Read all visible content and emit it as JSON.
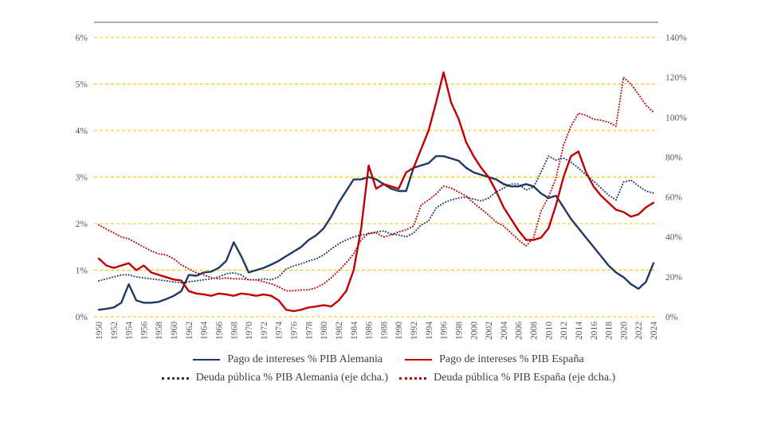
{
  "chart_data": {
    "type": "line",
    "title": "",
    "x": {
      "start": 1950,
      "end": 2024,
      "step": 1,
      "tick_step": 2
    },
    "left_axis": {
      "min": 0,
      "max": 6,
      "ticks": [
        "0%",
        "1%",
        "2%",
        "3%",
        "4%",
        "5%",
        "6%"
      ]
    },
    "right_axis": {
      "min": 0,
      "max": 140,
      "ticks": [
        "0%",
        "20%",
        "40%",
        "60%",
        "80%",
        "100%",
        "120%",
        "140%"
      ]
    },
    "grid": {
      "color": "#FFC000",
      "style": "dashed",
      "top_border_color": "#7f7f7f"
    },
    "text_color": "#595959",
    "legend_position": "bottom",
    "series": [
      {
        "id": "interest-germany",
        "name": "Pago de intereses % PIB Alemania",
        "axis": "left",
        "style": "solid",
        "color": "#1F3864",
        "values": [
          0.15,
          0.17,
          0.2,
          0.3,
          0.7,
          0.35,
          0.3,
          0.3,
          0.32,
          0.38,
          0.45,
          0.55,
          0.9,
          0.88,
          0.95,
          0.97,
          1.05,
          1.2,
          1.6,
          1.3,
          0.95,
          1.0,
          1.05,
          1.12,
          1.2,
          1.3,
          1.4,
          1.5,
          1.65,
          1.75,
          1.9,
          2.15,
          2.45,
          2.7,
          2.95,
          2.95,
          3.0,
          2.95,
          2.85,
          2.75,
          2.7,
          2.7,
          3.2,
          3.25,
          3.3,
          3.45,
          3.45,
          3.4,
          3.35,
          3.2,
          3.1,
          3.05,
          3.0,
          2.95,
          2.85,
          2.8,
          2.8,
          2.85,
          2.8,
          2.65,
          2.55,
          2.6,
          2.35,
          2.1,
          1.9,
          1.7,
          1.5,
          1.3,
          1.1,
          0.95,
          0.85,
          0.7,
          0.6,
          0.75,
          1.15
        ]
      },
      {
        "id": "interest-spain",
        "name": "Pago de intereses % PIB España",
        "axis": "left",
        "style": "solid",
        "color": "#C00000",
        "values": [
          1.25,
          1.1,
          1.05,
          1.1,
          1.15,
          1.0,
          1.1,
          0.95,
          0.9,
          0.85,
          0.8,
          0.78,
          0.55,
          0.5,
          0.48,
          0.45,
          0.5,
          0.48,
          0.45,
          0.5,
          0.48,
          0.45,
          0.48,
          0.45,
          0.35,
          0.15,
          0.12,
          0.15,
          0.2,
          0.22,
          0.25,
          0.22,
          0.35,
          0.55,
          1.0,
          1.9,
          3.25,
          2.75,
          2.85,
          2.8,
          2.75,
          3.1,
          3.2,
          3.6,
          4.0,
          4.6,
          5.25,
          4.6,
          4.25,
          3.75,
          3.45,
          3.2,
          3.0,
          2.7,
          2.35,
          2.1,
          1.85,
          1.65,
          1.65,
          1.7,
          1.9,
          2.4,
          3.0,
          3.45,
          3.55,
          3.1,
          2.8,
          2.6,
          2.45,
          2.3,
          2.25,
          2.15,
          2.2,
          2.35,
          2.45
        ]
      },
      {
        "id": "debt-germany",
        "name": "Deuda pública % PIB Alemania (eje dcha.)",
        "axis": "right",
        "style": "dotted",
        "color": "#1F3864",
        "values": [
          18,
          19,
          20,
          21,
          21,
          20,
          19.5,
          19,
          18.5,
          18,
          17.5,
          17,
          17.5,
          18,
          18.5,
          19,
          20,
          21.5,
          22,
          21,
          18.5,
          18.5,
          19,
          18.5,
          20,
          24,
          25.5,
          26.5,
          28,
          29,
          31,
          34,
          36.5,
          38.5,
          40,
          41,
          41.5,
          42.5,
          43,
          41.5,
          41,
          40,
          42,
          46,
          48,
          54.5,
          57,
          58.5,
          59.5,
          60,
          59,
          58,
          59.5,
          62.5,
          64.5,
          66.5,
          66.5,
          63.5,
          65,
          72.5,
          80.5,
          78.5,
          79.5,
          77.5,
          74.5,
          71,
          68,
          64.5,
          61,
          58.5,
          67.5,
          68.5,
          65.5,
          63,
          62
        ]
      },
      {
        "id": "debt-spain",
        "name": "Deuda pública % PIB España (eje dcha.)",
        "axis": "right",
        "style": "dotted",
        "color": "#C00000",
        "values": [
          46,
          44,
          42,
          40,
          39,
          37,
          35,
          33,
          31.5,
          31,
          29,
          26,
          24,
          22,
          21,
          19.5,
          19,
          19.5,
          19,
          19,
          18.5,
          18.5,
          17.5,
          16.5,
          15,
          13,
          13,
          13.5,
          13.5,
          14.5,
          16.5,
          19.5,
          23,
          27,
          31.5,
          38.5,
          42,
          42,
          40,
          41,
          42.5,
          43.5,
          45.5,
          56,
          58.5,
          61.5,
          65.5,
          64.5,
          62.5,
          60.5,
          57,
          54,
          51,
          47.5,
          45.5,
          42,
          38.5,
          35.5,
          39.5,
          53,
          60,
          69.5,
          86,
          95.5,
          102,
          101,
          99,
          98.5,
          97.5,
          95.5,
          120,
          116.5,
          111.5,
          106,
          102.5
        ]
      }
    ]
  }
}
